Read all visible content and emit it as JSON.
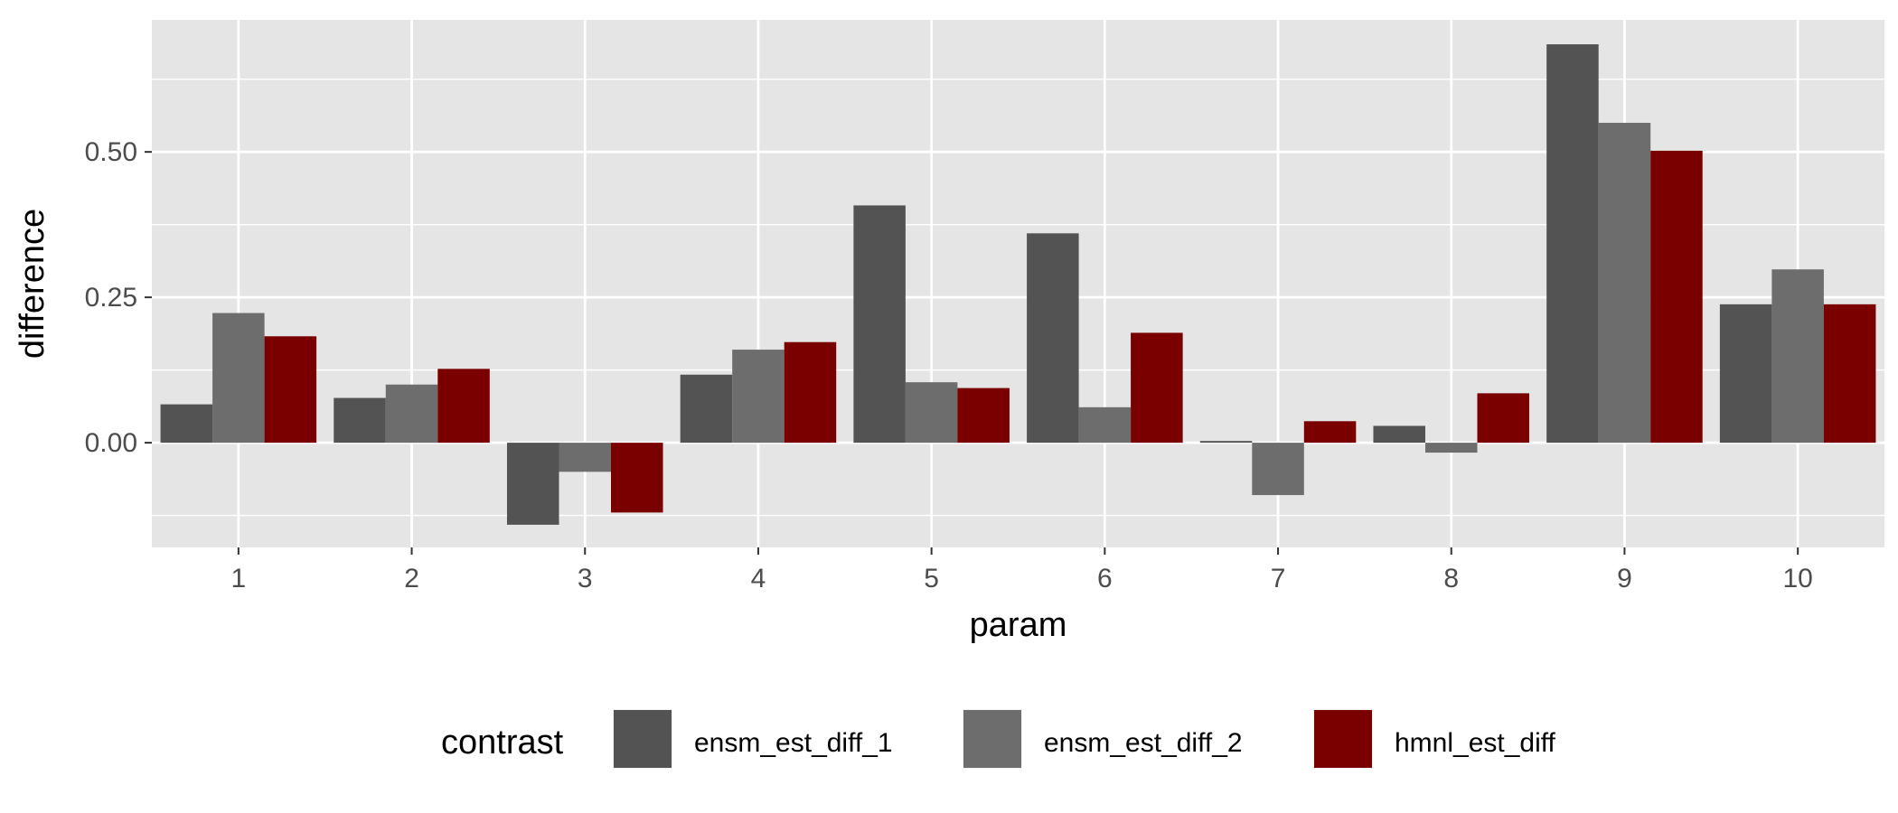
{
  "chart_data": {
    "type": "bar",
    "title": "",
    "xlabel": "param",
    "ylabel": "difference",
    "categories": [
      "1",
      "2",
      "3",
      "4",
      "5",
      "6",
      "7",
      "8",
      "9",
      "10"
    ],
    "series": [
      {
        "name": "ensm_est_diff_1",
        "color": "#535353",
        "values": [
          0.066,
          0.077,
          -0.141,
          0.117,
          0.408,
          0.36,
          0.003,
          0.029,
          0.685,
          0.238
        ]
      },
      {
        "name": "ensm_est_diff_2",
        "color": "#6d6d6d",
        "values": [
          0.223,
          0.1,
          -0.05,
          0.16,
          0.104,
          0.061,
          -0.09,
          -0.017,
          0.55,
          0.298
        ]
      },
      {
        "name": "hmnl_est_diff",
        "color": "#7a0000",
        "values": [
          0.183,
          0.127,
          -0.12,
          0.173,
          0.094,
          0.189,
          0.037,
          0.085,
          0.502,
          0.238
        ]
      }
    ],
    "ylim": [
      -0.18,
      0.727
    ],
    "yticks": [
      0.0,
      0.25,
      0.5
    ],
    "ytick_labels": [
      "0.00",
      "0.25",
      "0.50"
    ],
    "y_minor_ticks": [
      -0.125,
      0.125,
      0.375,
      0.625
    ],
    "grid": true,
    "panel_background": "#e5e5e5",
    "grid_color": "#ffffff",
    "legend": {
      "title": "contrast",
      "placement": "bottom",
      "entries": [
        "ensm_est_diff_1",
        "ensm_est_diff_2",
        "hmnl_est_diff"
      ]
    }
  }
}
